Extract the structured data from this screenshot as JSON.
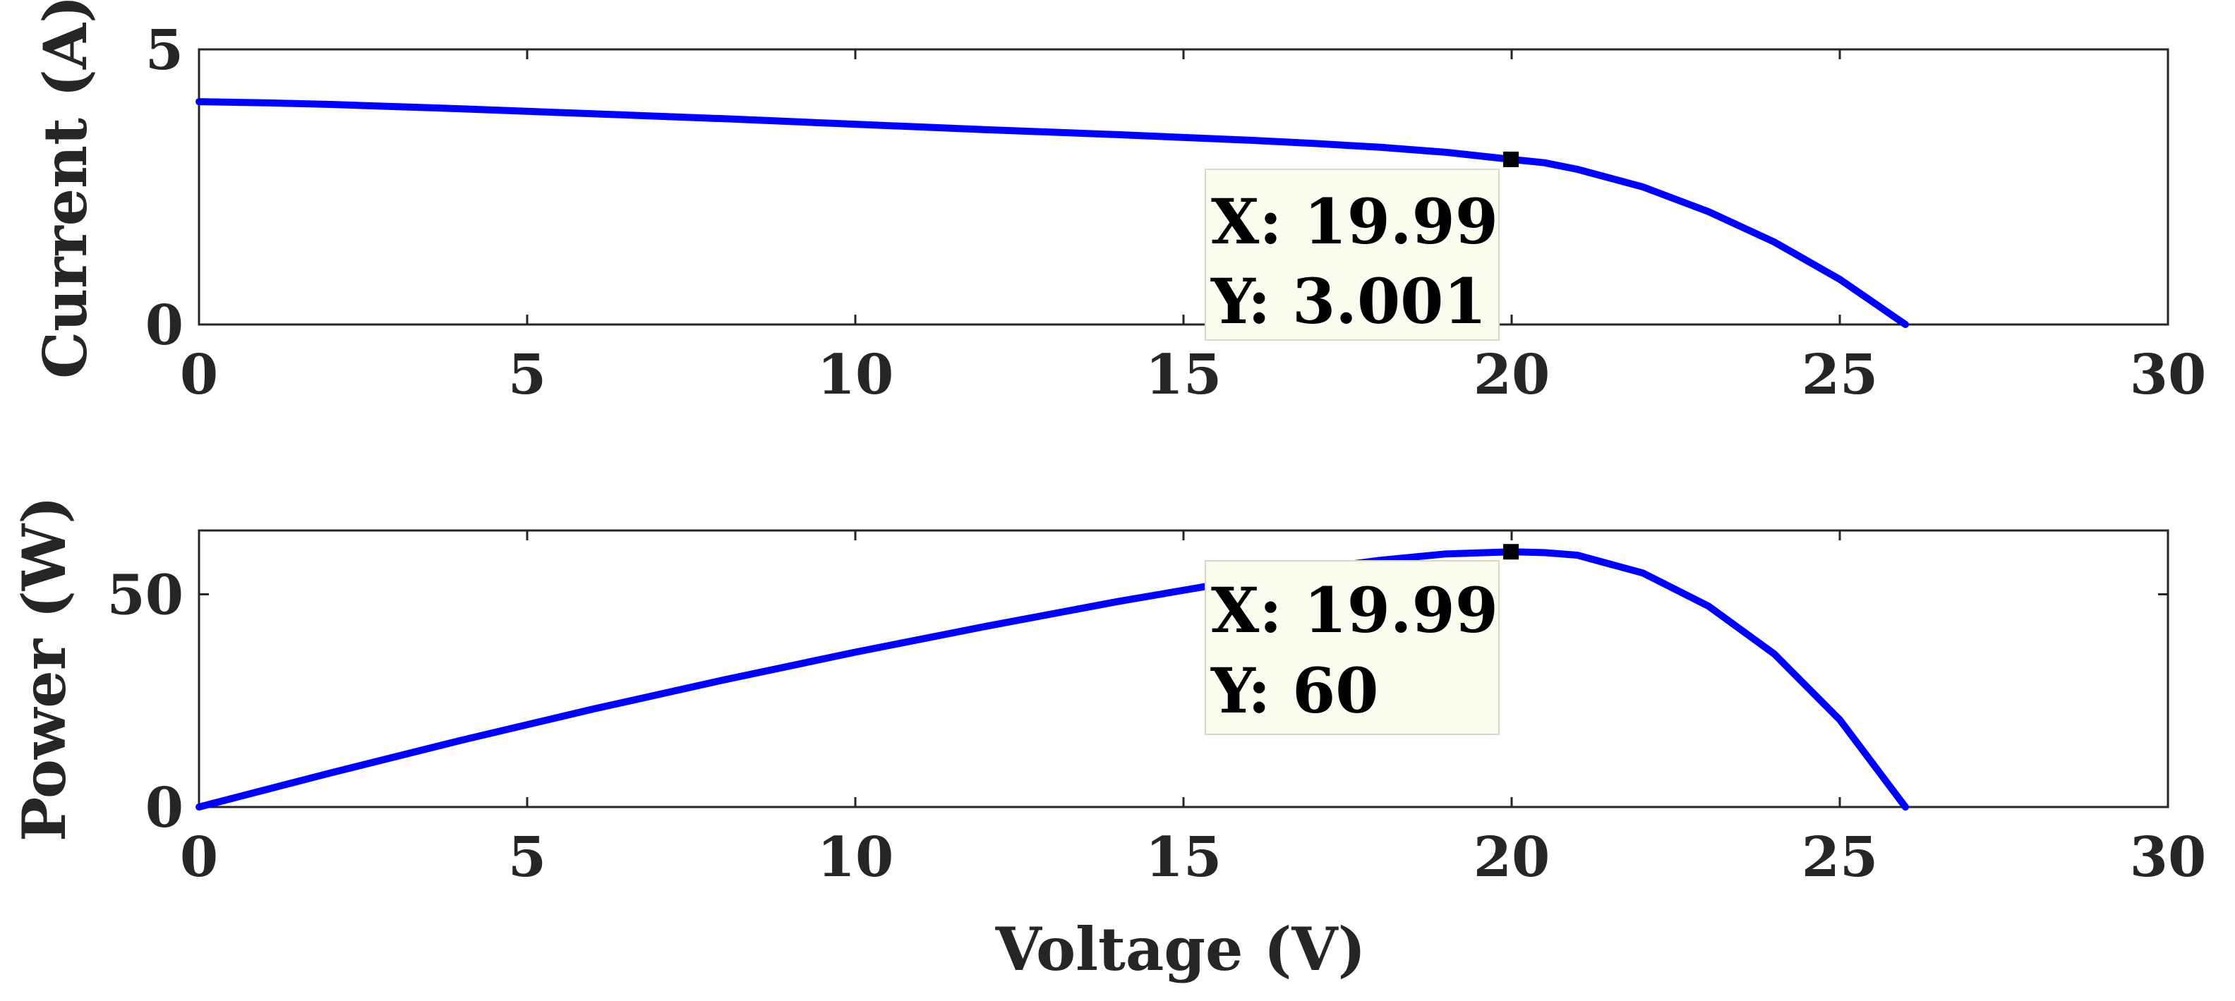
{
  "figure": {
    "line_color": "#0000ff",
    "axis_color": "#262626",
    "datatip_background": "#fbfbee"
  },
  "chart_data": [
    {
      "type": "line",
      "title": "",
      "xlabel": "",
      "ylabel": "Current (A)",
      "xlim": [
        0,
        30
      ],
      "ylim": [
        0,
        5
      ],
      "xticks": [
        "0",
        "5",
        "10",
        "15",
        "20",
        "25",
        "30"
      ],
      "yticks": [
        "0",
        "5"
      ],
      "grid": false,
      "series": [
        {
          "x": [
            0,
            1,
            2,
            4,
            6,
            8,
            10,
            12,
            14,
            16,
            17,
            18,
            19,
            19.99,
            20.5,
            21,
            22,
            23,
            24,
            25,
            26
          ],
          "y": [
            4.05,
            4.03,
            4.0,
            3.92,
            3.83,
            3.74,
            3.64,
            3.54,
            3.45,
            3.35,
            3.29,
            3.22,
            3.13,
            3.001,
            2.94,
            2.82,
            2.5,
            2.05,
            1.5,
            0.82,
            0.0
          ]
        }
      ],
      "datatip": {
        "x": 19.99,
        "y": 3.001,
        "x_text": "X: 19.99",
        "y_text": "Y: 3.001"
      }
    },
    {
      "type": "line",
      "title": "",
      "xlabel": "Voltage (V)",
      "ylabel": "Power (W)",
      "xlim": [
        0,
        30
      ],
      "ylim": [
        0,
        65
      ],
      "xticks": [
        "0",
        "5",
        "10",
        "15",
        "20",
        "25",
        "30"
      ],
      "yticks": [
        "0",
        "50"
      ],
      "grid": false,
      "series": [
        {
          "x": [
            0,
            2,
            4,
            6,
            8,
            10,
            12,
            14,
            16,
            17,
            18,
            19,
            19.99,
            20.5,
            21,
            22,
            23,
            24,
            25,
            26
          ],
          "y": [
            0,
            8.0,
            15.7,
            23.0,
            29.9,
            36.4,
            42.5,
            48.3,
            53.6,
            56.0,
            58.0,
            59.5,
            60.0,
            59.8,
            59.2,
            55.0,
            47.2,
            36.0,
            20.5,
            0
          ]
        }
      ],
      "datatip": {
        "x": 19.99,
        "y": 60,
        "x_text": "X: 19.99",
        "y_text": "Y: 60"
      }
    }
  ]
}
